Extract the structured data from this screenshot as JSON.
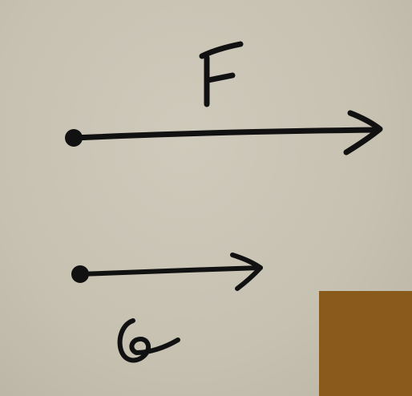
{
  "vectors": [
    {
      "id": "F",
      "label": "F",
      "relative_length": 1.0
    },
    {
      "id": "G",
      "label": "G",
      "relative_length": 0.6
    }
  ],
  "colors": {
    "paper": "#c9c4b4",
    "ink": "#111111",
    "patch": "#8a5a1c"
  }
}
